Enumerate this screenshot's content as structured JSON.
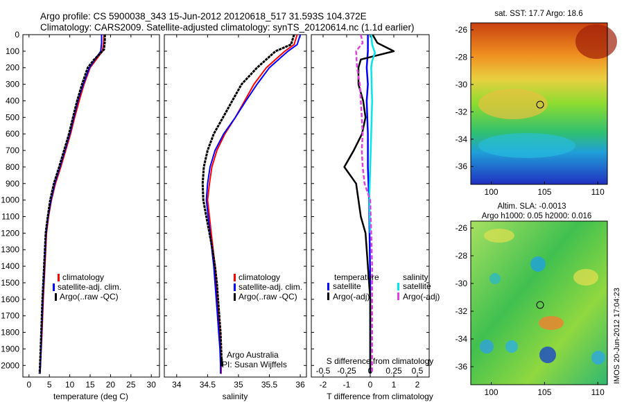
{
  "title": {
    "line1": "Argo profile: CS 5900038_343 15-Jun-2012 20120618_517 31.593S 104.372E",
    "line2": "Climatology: CARS2009. Satellite-adjusted climatology: synTS_20120614.nc (1.1d earlier)"
  },
  "credits": {
    "org": "Argo Australia",
    "pi": "PI: Susan Wijffels"
  },
  "timestamp": "IMOS 20-Jun-2012 17:04:23",
  "colors": {
    "climatology": "#ff0000",
    "satellite_adj": "#0000ff",
    "argo": "#000000",
    "s_satellite": "#00e5ee",
    "s_argo": "#e040e0"
  },
  "legends": {
    "temp_panel": [
      "climatology",
      "satellite-adj. clim.",
      "Argo(..raw -QC)"
    ],
    "sal_panel": [
      "climatology",
      "satellite-adj. clim.",
      "Argo(..raw -QC)"
    ],
    "diff_panel": {
      "temperature": "temperature",
      "salinity": "salinity",
      "t_sat": "satellite",
      "t_argo": "Argo(-adj)",
      "s_sat": "satellite",
      "s_argo": "Argo(-adj)"
    }
  },
  "map_top": {
    "title": "sat. SST: 17.7 Argo: 18.6",
    "lon_ticks": [
      "100",
      "105",
      "110"
    ],
    "lat_ticks": [
      "-26",
      "-28",
      "-30",
      "-32",
      "-34",
      "-36"
    ]
  },
  "map_bottom": {
    "title1": "Altim. SLA: -0.0013",
    "title2": "Argo h1000: 0.05 h2000: 0.016",
    "lon_ticks": [
      "100",
      "105",
      "110"
    ],
    "lat_ticks": [
      "-26",
      "-28",
      "-30",
      "-32",
      "-34",
      "-36"
    ]
  },
  "chart_data": [
    {
      "type": "line",
      "xlabel": "temperature (deg C)",
      "ylabel": "",
      "xlim": [
        -1.5,
        32
      ],
      "ylim": [
        2070,
        0
      ],
      "x_ticks": [
        0,
        5,
        10,
        15,
        20,
        25,
        30
      ],
      "y_ticks": [
        0,
        100,
        200,
        300,
        400,
        500,
        600,
        700,
        800,
        900,
        1000,
        1100,
        1200,
        1300,
        1400,
        1500,
        1600,
        1700,
        1800,
        1900,
        2000
      ],
      "series": [
        {
          "name": "climatology",
          "points": [
            [
              18.4,
              0
            ],
            [
              18.3,
              50
            ],
            [
              18.0,
              100
            ],
            [
              16.5,
              150
            ],
            [
              15.0,
              200
            ],
            [
              13.5,
              300
            ],
            [
              12.3,
              400
            ],
            [
              11.2,
              500
            ],
            [
              10.2,
              600
            ],
            [
              9.0,
              700
            ],
            [
              7.8,
              800
            ],
            [
              6.5,
              900
            ],
            [
              5.5,
              1000
            ],
            [
              4.8,
              1100
            ],
            [
              4.3,
              1200
            ],
            [
              3.9,
              1400
            ],
            [
              3.5,
              1600
            ],
            [
              3.2,
              1800
            ],
            [
              2.8,
              2000
            ],
            [
              2.7,
              2050
            ]
          ]
        },
        {
          "name": "satellite-adj. clim.",
          "points": [
            [
              17.8,
              0
            ],
            [
              17.8,
              50
            ],
            [
              17.6,
              100
            ],
            [
              16.2,
              150
            ],
            [
              14.8,
              200
            ],
            [
              13.3,
              300
            ],
            [
              12.0,
              400
            ],
            [
              11.0,
              500
            ],
            [
              10.0,
              600
            ],
            [
              8.8,
              700
            ],
            [
              7.6,
              800
            ],
            [
              6.3,
              900
            ],
            [
              5.4,
              1000
            ],
            [
              4.7,
              1100
            ],
            [
              4.2,
              1200
            ],
            [
              3.8,
              1400
            ],
            [
              3.4,
              1600
            ],
            [
              3.1,
              1800
            ],
            [
              2.8,
              2000
            ],
            [
              2.7,
              2050
            ]
          ]
        },
        {
          "name": "Argo(..raw -QC)",
          "points": [
            [
              18.6,
              0
            ],
            [
              18.6,
              40
            ],
            [
              18.4,
              90
            ],
            [
              16.0,
              150
            ],
            [
              14.4,
              200
            ],
            [
              13.0,
              300
            ],
            [
              11.8,
              400
            ],
            [
              10.8,
              500
            ],
            [
              9.8,
              600
            ],
            [
              8.6,
              700
            ],
            [
              7.4,
              800
            ],
            [
              6.1,
              900
            ],
            [
              5.2,
              1000
            ],
            [
              4.6,
              1100
            ],
            [
              4.1,
              1200
            ],
            [
              3.7,
              1400
            ],
            [
              3.3,
              1600
            ],
            [
              3.0,
              1800
            ],
            [
              2.7,
              2000
            ],
            [
              2.6,
              2050
            ]
          ]
        }
      ]
    },
    {
      "type": "line",
      "xlabel": "salinity",
      "xlim": [
        33.8,
        36.1
      ],
      "ylim": [
        2070,
        0
      ],
      "x_ticks": [
        34,
        34.5,
        35,
        35.5,
        36
      ],
      "series": [
        {
          "name": "climatology",
          "points": [
            [
              35.95,
              0
            ],
            [
              35.9,
              60
            ],
            [
              35.75,
              100
            ],
            [
              35.6,
              150
            ],
            [
              35.45,
              200
            ],
            [
              35.25,
              300
            ],
            [
              35.1,
              400
            ],
            [
              34.95,
              500
            ],
            [
              34.78,
              600
            ],
            [
              34.65,
              700
            ],
            [
              34.57,
              800
            ],
            [
              34.53,
              900
            ],
            [
              34.5,
              1000
            ],
            [
              34.53,
              1100
            ],
            [
              34.56,
              1200
            ],
            [
              34.59,
              1300
            ],
            [
              34.62,
              1400
            ],
            [
              34.64,
              1500
            ],
            [
              34.66,
              1600
            ],
            [
              34.68,
              1700
            ],
            [
              34.7,
              1800
            ],
            [
              34.71,
              1900
            ],
            [
              34.72,
              2000
            ],
            [
              34.72,
              2050
            ]
          ]
        },
        {
          "name": "satellite-adj. clim.",
          "points": [
            [
              36.0,
              0
            ],
            [
              35.95,
              60
            ],
            [
              35.8,
              100
            ],
            [
              35.65,
              150
            ],
            [
              35.5,
              200
            ],
            [
              35.3,
              300
            ],
            [
              35.12,
              400
            ],
            [
              34.95,
              500
            ],
            [
              34.76,
              600
            ],
            [
              34.62,
              700
            ],
            [
              34.54,
              800
            ],
            [
              34.5,
              900
            ],
            [
              34.48,
              1000
            ],
            [
              34.51,
              1100
            ],
            [
              34.54,
              1200
            ],
            [
              34.57,
              1300
            ],
            [
              34.6,
              1400
            ],
            [
              34.62,
              1500
            ],
            [
              34.64,
              1600
            ],
            [
              34.66,
              1700
            ],
            [
              34.68,
              1800
            ],
            [
              34.7,
              1900
            ],
            [
              34.71,
              2000
            ],
            [
              34.71,
              2050
            ]
          ]
        },
        {
          "name": "Argo(..raw -QC)",
          "points": [
            [
              35.9,
              0
            ],
            [
              35.85,
              60
            ],
            [
              35.6,
              100
            ],
            [
              35.45,
              150
            ],
            [
              35.3,
              200
            ],
            [
              35.05,
              300
            ],
            [
              34.9,
              400
            ],
            [
              34.75,
              500
            ],
            [
              34.6,
              600
            ],
            [
              34.5,
              700
            ],
            [
              34.44,
              800
            ],
            [
              34.42,
              900
            ],
            [
              34.43,
              1000
            ],
            [
              34.48,
              1100
            ],
            [
              34.53,
              1200
            ],
            [
              34.58,
              1300
            ],
            [
              34.62,
              1400
            ],
            [
              34.65,
              1500
            ],
            [
              34.67,
              1600
            ],
            [
              34.69,
              1700
            ],
            [
              34.71,
              1800
            ],
            [
              34.72,
              1900
            ],
            [
              34.73,
              2000
            ],
            [
              34.73,
              1960
            ]
          ]
        }
      ]
    },
    {
      "type": "line",
      "xlabel": "T difference from climatology",
      "x2label": "S difference from climatology",
      "xlim": [
        -2.5,
        2.5
      ],
      "x2lim": [
        -0.625,
        0.625
      ],
      "ylim": [
        2070,
        0
      ],
      "x_ticks": [
        -2,
        -1,
        0,
        1,
        2
      ],
      "x2_ticks": [
        -0.5,
        -0.25,
        0,
        0.25,
        0.5
      ],
      "series": [
        {
          "name": "T satellite",
          "points": [
            [
              -0.1,
              0
            ],
            [
              -0.1,
              100
            ],
            [
              -0.15,
              200
            ],
            [
              -0.1,
              300
            ],
            [
              -0.15,
              400
            ],
            [
              -0.1,
              600
            ],
            [
              -0.1,
              800
            ],
            [
              -0.05,
              1000
            ],
            [
              0,
              1500
            ],
            [
              0,
              2050
            ]
          ]
        },
        {
          "name": "T Argo(-adj)",
          "points": [
            [
              0.1,
              0
            ],
            [
              0.3,
              50
            ],
            [
              1.0,
              100
            ],
            [
              -0.4,
              150
            ],
            [
              -0.5,
              200
            ],
            [
              -0.5,
              300
            ],
            [
              -0.3,
              400
            ],
            [
              -0.2,
              500
            ],
            [
              -0.35,
              600
            ],
            [
              -0.7,
              700
            ],
            [
              -1.1,
              800
            ],
            [
              -0.6,
              900
            ],
            [
              -0.5,
              1000
            ],
            [
              -0.4,
              1100
            ],
            [
              -0.2,
              1200
            ],
            [
              -0.1,
              1400
            ],
            [
              0,
              1600
            ],
            [
              0,
              1800
            ],
            [
              0,
              2050
            ]
          ]
        },
        {
          "name": "S satellite",
          "points": [
            [
              0.01,
              0
            ],
            [
              0.02,
              60
            ],
            [
              0.05,
              110
            ],
            [
              0.02,
              160
            ],
            [
              0.01,
              200
            ],
            [
              0.02,
              400
            ],
            [
              0.01,
              600
            ],
            [
              0.0,
              800
            ],
            [
              -0.01,
              1000
            ],
            [
              0,
              1200
            ]
          ]
        },
        {
          "name": "S Argo(-adj)",
          "points": [
            [
              -0.1,
              0
            ],
            [
              -0.08,
              50
            ],
            [
              -0.15,
              100
            ],
            [
              -0.14,
              200
            ],
            [
              -0.11,
              300
            ],
            [
              -0.1,
              400
            ],
            [
              -0.09,
              500
            ],
            [
              -0.08,
              600
            ],
            [
              -0.09,
              700
            ],
            [
              -0.08,
              800
            ],
            [
              -0.06,
              900
            ],
            [
              0.0,
              1000
            ],
            [
              0.01,
              1200
            ],
            [
              0.02,
              1400
            ],
            [
              0.02,
              1700
            ],
            [
              0.02,
              2000
            ],
            [
              0.02,
              2050
            ]
          ]
        }
      ]
    }
  ]
}
